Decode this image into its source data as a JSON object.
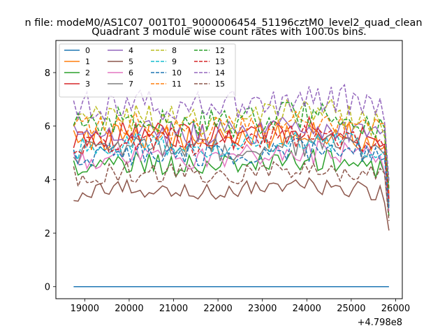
{
  "chart_data": {
    "type": "line",
    "suptitle": "n file: modeM0/AS1C07_001T01_9000006454_51196cztM0_level2_quad_clean",
    "title": "Quadrant 3 module wise count rates with 100.0s bins.",
    "xlabel": "",
    "ylabel": "",
    "x_offset_label": "+4.798e8",
    "xlim": [
      18350,
      26150
    ],
    "ylim": [
      -0.45,
      9.2
    ],
    "xticks": [
      19000,
      20000,
      21000,
      22000,
      23000,
      24000,
      25000,
      26000
    ],
    "yticks": [
      0,
      2,
      4,
      6,
      8
    ],
    "x_start": 18750,
    "x_step": 100,
    "n_points": 72,
    "grid": false,
    "legend_position": "top-left",
    "legend_columns": 4,
    "series": [
      {
        "name": "0",
        "color": "#1f77b4",
        "dash": "solid",
        "base": 0.0,
        "amp": 0.0
      },
      {
        "name": "1",
        "color": "#ff7f0e",
        "dash": "solid",
        "base": 5.4,
        "amp": 0.5
      },
      {
        "name": "2",
        "color": "#2ca02c",
        "dash": "solid",
        "base": 4.4,
        "amp": 0.45
      },
      {
        "name": "3",
        "color": "#d62728",
        "dash": "solid",
        "base": 5.5,
        "amp": 0.5
      },
      {
        "name": "4",
        "color": "#9467bd",
        "dash": "solid",
        "base": 5.6,
        "amp": 0.5
      },
      {
        "name": "5",
        "color": "#8c564b",
        "dash": "solid",
        "base": 3.5,
        "amp": 0.35
      },
      {
        "name": "6",
        "color": "#e377c2",
        "dash": "solid",
        "base": 4.7,
        "amp": 0.45
      },
      {
        "name": "7",
        "color": "#7f7f7f",
        "dash": "solid",
        "base": 5.0,
        "amp": 0.45
      },
      {
        "name": "8",
        "color": "#bcbd22",
        "dash": "dashed",
        "base": 6.1,
        "amp": 0.55
      },
      {
        "name": "9",
        "color": "#17becf",
        "dash": "dashed",
        "base": 5.1,
        "amp": 0.45
      },
      {
        "name": "10",
        "color": "#1f77b4",
        "dash": "dashed",
        "base": 4.8,
        "amp": 0.45
      },
      {
        "name": "11",
        "color": "#ff7f0e",
        "dash": "dashed",
        "base": 5.8,
        "amp": 0.5
      },
      {
        "name": "12",
        "color": "#2ca02c",
        "dash": "dashed",
        "base": 6.0,
        "amp": 0.55
      },
      {
        "name": "13",
        "color": "#d62728",
        "dash": "dashed",
        "base": 5.3,
        "amp": 0.5
      },
      {
        "name": "14",
        "color": "#9467bd",
        "dash": "dashed",
        "base": 6.6,
        "amp": 0.6
      },
      {
        "name": "15",
        "color": "#8c564b",
        "dash": "dashed",
        "base": 4.1,
        "amp": 0.4
      }
    ]
  }
}
